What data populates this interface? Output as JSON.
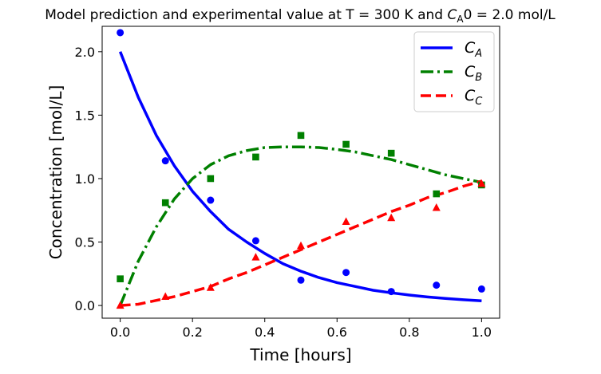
{
  "chart_data": {
    "type": "line",
    "title_prefix": "Model prediction and experimental value at T = 300 K and ",
    "title_var": "C",
    "title_sub": "A",
    "title_suffix": "0 = 2.0 mol/L",
    "xlabel": "Time [hours]",
    "ylabel": "Concentration [mol/L]",
    "xlim": [
      -0.05,
      1.05
    ],
    "ylim": [
      -0.1,
      2.2
    ],
    "xticks": [
      0.0,
      0.2,
      0.4,
      0.6,
      0.8,
      1.0
    ],
    "xtick_labels": [
      "0.0",
      "0.2",
      "0.4",
      "0.6",
      "0.8",
      "1.0"
    ],
    "yticks": [
      0.0,
      0.5,
      1.0,
      1.5,
      2.0
    ],
    "ytick_labels": [
      "0.0",
      "0.5",
      "1.0",
      "1.5",
      "2.0"
    ],
    "grid": false,
    "legend_position": "top-right",
    "model_x": [
      0.0,
      0.05,
      0.1,
      0.15,
      0.2,
      0.25,
      0.3,
      0.35,
      0.4,
      0.45,
      0.5,
      0.55,
      0.6,
      0.65,
      0.7,
      0.75,
      0.8,
      0.85,
      0.9,
      0.95,
      1.0
    ],
    "series": [
      {
        "name_var": "C",
        "name_sub": "A",
        "color": "#0000ff",
        "dash": "solid",
        "marker": "circle",
        "model_y": [
          2.0,
          1.64,
          1.34,
          1.1,
          0.9,
          0.74,
          0.6,
          0.5,
          0.41,
          0.33,
          0.27,
          0.22,
          0.18,
          0.15,
          0.12,
          0.1,
          0.082,
          0.067,
          0.055,
          0.045,
          0.037
        ],
        "exp_x": [
          0.0,
          0.125,
          0.25,
          0.375,
          0.5,
          0.625,
          0.75,
          0.875,
          1.0
        ],
        "exp_y": [
          2.15,
          1.14,
          0.83,
          0.51,
          0.2,
          0.26,
          0.11,
          0.16,
          0.13
        ]
      },
      {
        "name_var": "C",
        "name_sub": "B",
        "color": "#008000",
        "dash": "dashdot",
        "marker": "square",
        "model_y": [
          0.0,
          0.35,
          0.62,
          0.84,
          1.0,
          1.11,
          1.18,
          1.22,
          1.245,
          1.25,
          1.25,
          1.245,
          1.23,
          1.21,
          1.18,
          1.15,
          1.11,
          1.07,
          1.03,
          1.0,
          0.97
        ],
        "exp_x": [
          0.0,
          0.125,
          0.25,
          0.375,
          0.5,
          0.625,
          0.75,
          0.875,
          1.0
        ],
        "exp_y": [
          0.21,
          0.81,
          1.0,
          1.17,
          1.34,
          1.27,
          1.2,
          0.88,
          0.95
        ]
      },
      {
        "name_var": "C",
        "name_sub": "C",
        "color": "#ff0000",
        "dash": "dashed",
        "marker": "triangle",
        "model_y": [
          0.0,
          0.01,
          0.04,
          0.07,
          0.11,
          0.15,
          0.21,
          0.26,
          0.32,
          0.38,
          0.44,
          0.5,
          0.56,
          0.62,
          0.68,
          0.74,
          0.79,
          0.85,
          0.89,
          0.94,
          0.98
        ],
        "exp_x": [
          0.0,
          0.125,
          0.25,
          0.375,
          0.5,
          0.625,
          0.75,
          0.875,
          1.0
        ],
        "exp_y": [
          0.0,
          0.07,
          0.14,
          0.38,
          0.47,
          0.66,
          0.69,
          0.77,
          0.96
        ]
      }
    ]
  }
}
